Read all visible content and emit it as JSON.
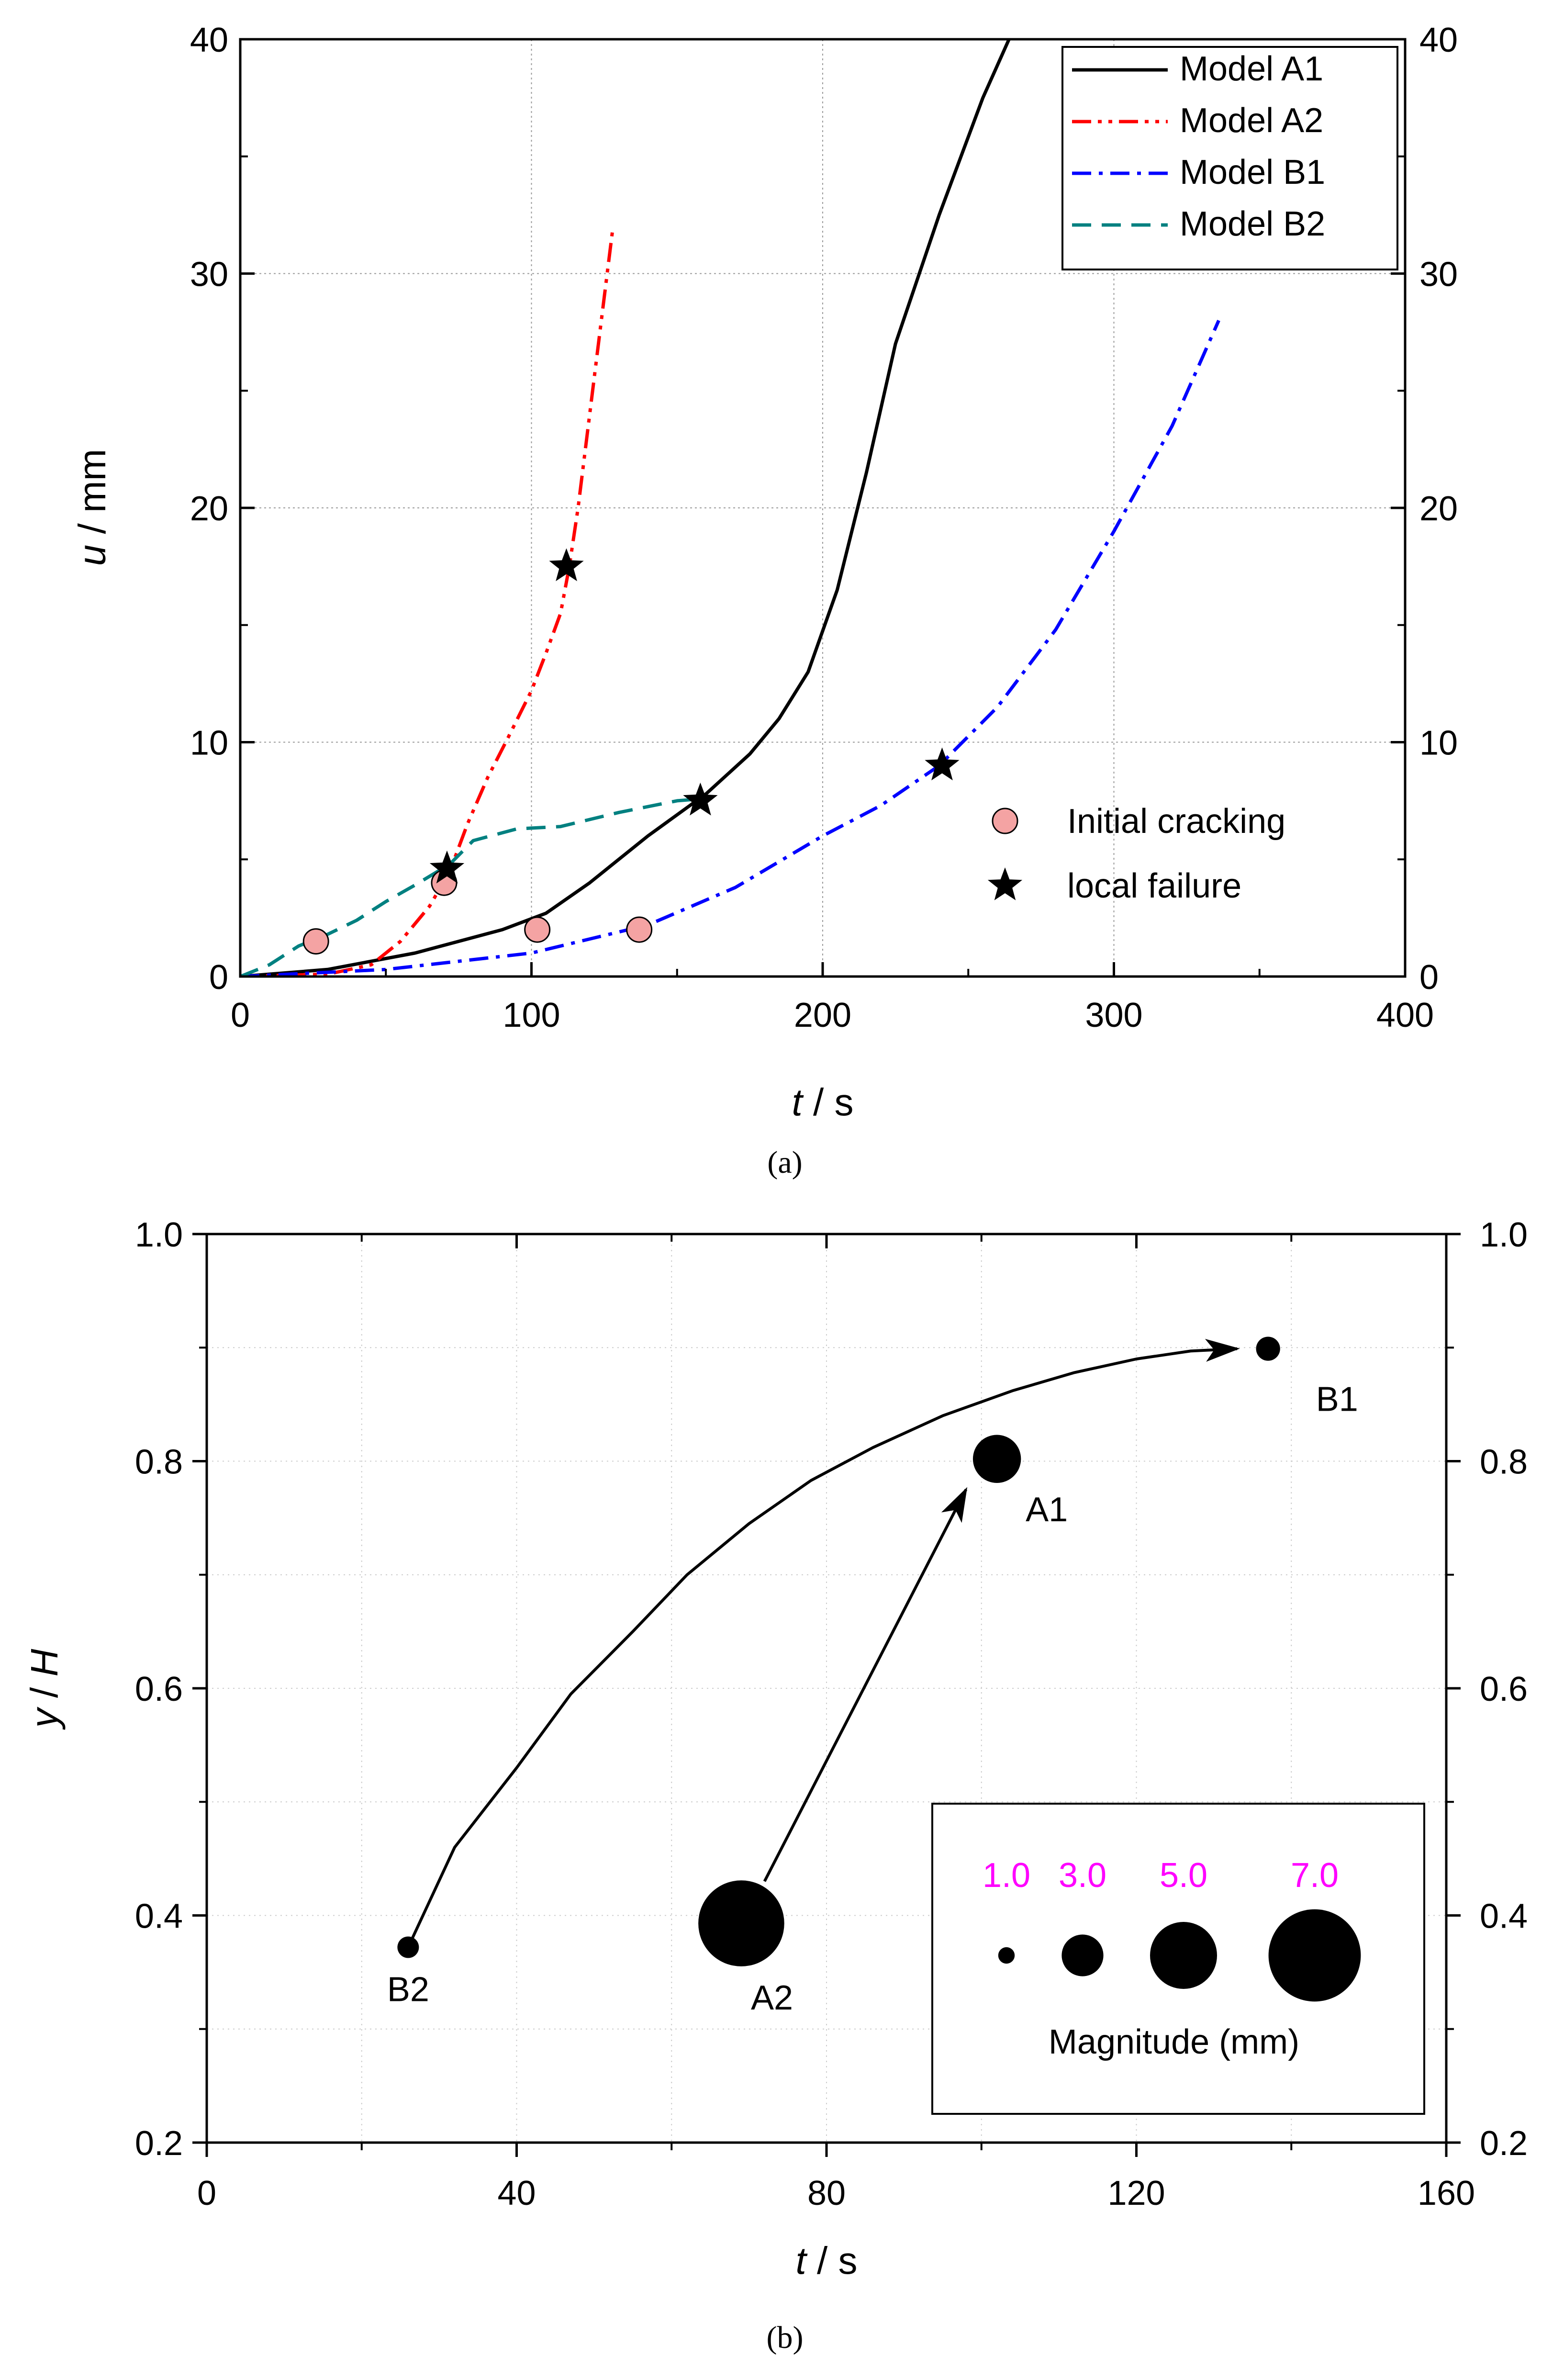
{
  "chart_data": [
    {
      "type": "line",
      "panel": "a",
      "caption": "(a)",
      "xlabel_var": "t",
      "xlabel_unit": " / s",
      "ylabel_var": "u",
      "ylabel_unit": " / mm",
      "xlim": [
        0,
        400
      ],
      "ylim": [
        0,
        40
      ],
      "xticks": [
        0,
        100,
        200,
        300,
        400
      ],
      "yticks": [
        0,
        10,
        20,
        30,
        40
      ],
      "grid": true,
      "legend_position": "top-right",
      "series": [
        {
          "name": "Model A1",
          "color": "#000000",
          "dash": "solid",
          "x": [
            0,
            30,
            60,
            90,
            105,
            120,
            140,
            160,
            175,
            185,
            195,
            205,
            215,
            225,
            240,
            255,
            264
          ],
          "y": [
            0,
            0.3,
            1.0,
            2.0,
            2.7,
            4.0,
            6.0,
            7.8,
            9.5,
            11.0,
            13.0,
            16.5,
            21.5,
            27.0,
            32.5,
            37.5,
            40
          ]
        },
        {
          "name": "Model A2",
          "color": "#ff0000",
          "dash": "dashdotdot",
          "x": [
            0,
            30,
            45,
            55,
            65,
            72,
            78,
            85,
            92,
            100,
            105,
            110,
            113,
            116,
            120,
            124,
            128
          ],
          "y": [
            0,
            0.1,
            0.5,
            1.5,
            3.0,
            4.5,
            6.5,
            8.5,
            10.2,
            12.2,
            13.8,
            15.5,
            17.5,
            20.0,
            24.0,
            28.0,
            32.0
          ]
        },
        {
          "name": "Model B1",
          "color": "#0000ff",
          "dash": "dashdot",
          "x": [
            0,
            50,
            100,
            140,
            170,
            200,
            220,
            240,
            260,
            280,
            300,
            320,
            336
          ],
          "y": [
            0,
            0.3,
            1.0,
            2.2,
            3.8,
            6.0,
            7.3,
            9.0,
            11.5,
            14.8,
            19.0,
            23.5,
            28.0
          ]
        },
        {
          "name": "Model B2",
          "color": "#008080",
          "dash": "dashed",
          "x": [
            0,
            10,
            20,
            30,
            40,
            50,
            60,
            72,
            80,
            95,
            110,
            130,
            150,
            160
          ],
          "y": [
            0,
            0.5,
            1.3,
            1.8,
            2.4,
            3.2,
            3.9,
            4.8,
            5.8,
            6.3,
            6.4,
            7.0,
            7.5,
            7.6
          ]
        }
      ],
      "markers": [
        {
          "name": "Initial cracking",
          "symbol": "circle",
          "color": "#f4a3a3",
          "points": [
            [
              26,
              1.5
            ],
            [
              70,
              4.0
            ],
            [
              102,
              2.0
            ],
            [
              137,
              2.0
            ]
          ]
        },
        {
          "name": "local failure",
          "symbol": "star",
          "color": "#000000",
          "points": [
            [
              71,
              4.6
            ],
            [
              112,
              17.5
            ],
            [
              158,
              7.5
            ],
            [
              241,
              9.0
            ]
          ]
        }
      ]
    },
    {
      "type": "scatter",
      "panel": "b",
      "caption": "(b)",
      "xlabel_var": "t",
      "xlabel_unit": " / s",
      "ylabel_var": "y",
      "ylabel_sep": " / ",
      "ylabel_var2": "H",
      "xlim": [
        0,
        160
      ],
      "ylim": [
        0.2,
        1.0
      ],
      "xticks": [
        0,
        40,
        80,
        120,
        160
      ],
      "yticks": [
        0.2,
        0.4,
        0.6,
        0.8,
        1.0
      ],
      "ytick_labels": [
        "0.2",
        "0.4",
        "0.6",
        "0.8",
        "1.0"
      ],
      "grid": true,
      "points": [
        {
          "label": "B2",
          "t": 26,
          "y": 0.372,
          "magnitude_mm": 1.4,
          "label_pos": "below"
        },
        {
          "label": "A2",
          "t": 69,
          "y": 0.393,
          "magnitude_mm": 6.5,
          "label_pos": "below-right"
        },
        {
          "label": "A1",
          "t": 102,
          "y": 0.802,
          "magnitude_mm": 3.5,
          "label_pos": "below-right"
        },
        {
          "label": "B1",
          "t": 137,
          "y": 0.899,
          "magnitude_mm": 1.6,
          "label_pos": "below-right"
        }
      ],
      "arrows": [
        {
          "from": "B2",
          "to": "B1",
          "curve_t": [
            26,
            32,
            40,
            47,
            55,
            62,
            70,
            78,
            86,
            95,
            104,
            112,
            120,
            127,
            133
          ],
          "curve_y": [
            0.372,
            0.46,
            0.53,
            0.595,
            0.65,
            0.7,
            0.745,
            0.783,
            0.812,
            0.84,
            0.862,
            0.878,
            0.89,
            0.897,
            0.899
          ]
        },
        {
          "from": "A2",
          "to": "A1",
          "curve_t": [
            72,
            98
          ],
          "curve_y": [
            0.43,
            0.775
          ]
        }
      ],
      "size_legend": {
        "title": "Magnitude (mm)",
        "values": [
          1.0,
          3.0,
          5.0,
          7.0
        ],
        "labels": [
          "1.0",
          "3.0",
          "5.0",
          "7.0"
        ],
        "position": "bottom-right"
      }
    }
  ]
}
